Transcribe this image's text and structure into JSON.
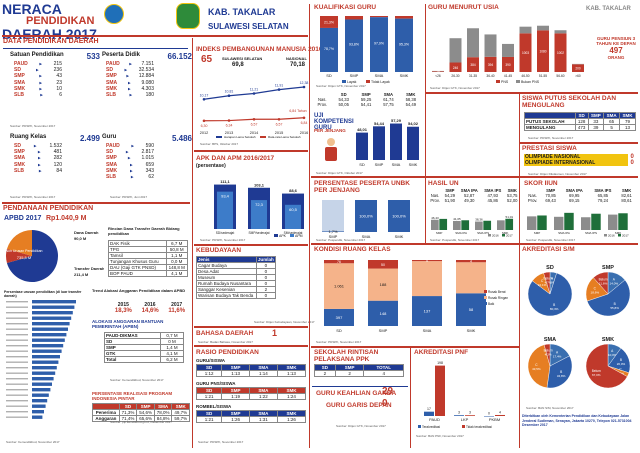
{
  "header": {
    "title_line1": "NERACA",
    "title_line2": "PENDIDIKAN",
    "title_line3": "DAERAH 2017",
    "region": "KAB. TAKALAR",
    "province": "SULAWESI SELATAN",
    "region_right": "KAB. TAKALAR"
  },
  "data_pendidikan": {
    "title": "DATA PENDIDIKAN DAERAH",
    "satuan": {
      "label": "Satuan Pendidikan",
      "total": "533",
      "items": [
        {
          "k": "PAUD",
          "v": "215"
        },
        {
          "k": "SD",
          "v": "236"
        },
        {
          "k": "SMP",
          "v": "43"
        },
        {
          "k": "SMA",
          "v": "23"
        },
        {
          "k": "SMK",
          "v": "10"
        },
        {
          "k": "SLB",
          "v": "6"
        }
      ]
    },
    "peserta": {
      "label": "Peserta Didik",
      "total": "66.152",
      "items": [
        {
          "k": "PAUD",
          "v": "7.151"
        },
        {
          "k": "SD",
          "v": "32.534"
        },
        {
          "k": "SMP",
          "v": "12.884"
        },
        {
          "k": "SMA",
          "v": "9.080"
        },
        {
          "k": "SMK",
          "v": "4.303"
        },
        {
          "k": "SLB",
          "v": "180"
        }
      ]
    },
    "ruang": {
      "label": "Ruang Kelas",
      "total": "2.499",
      "items": [
        {
          "k": "SD",
          "v": "1.532"
        },
        {
          "k": "SMP",
          "v": "481"
        },
        {
          "k": "SMA",
          "v": "282"
        },
        {
          "k": "SMK",
          "v": "120"
        },
        {
          "k": "SLB",
          "v": "84"
        }
      ]
    },
    "guru": {
      "label": "Guru",
      "total": "5.486",
      "items": [
        {
          "k": "PAUD",
          "v": "590"
        },
        {
          "k": "SD",
          "v": "2.817"
        },
        {
          "k": "SMP",
          "v": "1.015"
        },
        {
          "k": "SMA",
          "v": "659"
        },
        {
          "k": "SMK",
          "v": "343"
        },
        {
          "k": "SLB",
          "v": "62"
        }
      ]
    },
    "source1": "Sumber: PDSPK, November 2017",
    "source2": "Sumber: PDSPK, Juni 2017"
  },
  "pendanaan": {
    "title": "PENDANAAN PENDIDIKAN",
    "apbd_label": "APBD 2017",
    "apbd_value": "Rp1.040,9 M",
    "pie": [
      {
        "name": "Non Urusan Pendidikan",
        "value": "735,5 M",
        "frac": 0.707,
        "color": "#1f3a93"
      },
      {
        "name": "Dana Daerah",
        "value": "90,0 M",
        "frac": 0.087,
        "color": "#c0392b"
      },
      {
        "name": "Transfer Daerah",
        "value": "211,4 M",
        "frac": 0.206,
        "color": "#e67e22"
      }
    ],
    "rincian_title": "Rincian Dana Transfer Daerah Bidang pendidikan",
    "rincian": [
      {
        "k": "DAK Fisik",
        "v": "6,7 M"
      },
      {
        "k": "TPG",
        "v": "50,8 M"
      },
      {
        "k": "Tamsil",
        "v": "1,1 M"
      },
      {
        "k": "Tunjangan Khusus Guru",
        "v": "0,0 M"
      },
      {
        "k": "DAU (Gaji GTK PNSD)",
        "v": "148,8 M"
      },
      {
        "k": "BOP PAUD",
        "v": "4,1 M"
      }
    ],
    "persentase_title": "Persentase urusan pendidikan (di luar transfer daerah)",
    "trend_title": "Trend Alokasi Anggaran Pendidikan dalam APBD",
    "trend_years": [
      "2015",
      "2016",
      "2017"
    ],
    "trend_values": [
      "18,3%",
      "14,6%",
      "11,6%"
    ],
    "alokasi_title": "ALOKASI ANGGARAN BANTUAN PEMERINTAH (APBN)",
    "alokasi": [
      {
        "k": "PAUD-DIKMAS",
        "v": "0,7 M"
      },
      {
        "k": "SD",
        "v": "0 M"
      },
      {
        "k": "SMP",
        "v": "1,4 M"
      },
      {
        "k": "GTK",
        "v": "4,1 M"
      },
      {
        "k": "Total",
        "v": "6,2 M"
      }
    ],
    "pip_title": "PERSENTASE REALISASI PROGRAM INDONESIA PINTAR",
    "pip_headers": [
      "",
      "SD",
      "SMP",
      "SMA",
      "SMK"
    ],
    "pip_rows": [
      {
        "k": "Penerima",
        "v": [
          "71,3%",
          "54,6%",
          "78,0%",
          "49,7%"
        ]
      },
      {
        "k": "Anggaran",
        "v": [
          "71,4%",
          "65,6%",
          "84,8%",
          "59,7%"
        ]
      }
    ],
    "source": "Sumber: Kemendikbud, November 2017",
    "source_pip": "Sumber: pip.kemdikbud.go.id, Desember 2017"
  },
  "ipm": {
    "title": "INDEKS PEMBANGUNAN MANUSIA 2016",
    "rank": "65",
    "sulsel_label": "SULAWESI SELATAN",
    "sulsel_value": "69,8",
    "nasional_label": "NASIONAL",
    "nasional_value": "70,18",
    "years": [
      "2012",
      "2013",
      "2014",
      "2015",
      "2016"
    ],
    "harapan": [
      "10,17",
      "10,81",
      "11,21",
      "11,91",
      "12,38"
    ],
    "rata": [
      "6,30",
      "6,34",
      "6,57",
      "6,57",
      "6,84"
    ],
    "harapan_label": "Harapan Lama Sekolah",
    "rata_label": "Rata-rata Lama Sekolah",
    "rata_last_label": "6,84 Tahun",
    "harapan_last_label": "12,38 Tahun",
    "source": "Sumber: BPS, Oktober 2017"
  },
  "apk": {
    "title": "APK DAN APM 2016/2017",
    "subtitle": "(persentase)",
    "categories": [
      "SD/sederajat",
      "SMP/sederajat",
      "SM/sederajat"
    ],
    "apk_values": [
      111.1,
      103.1,
      88.6
    ],
    "apm_values": [
      93.4,
      72.3,
      60.5
    ],
    "apk_labels": [
      "111,1",
      "103,1",
      "88,6"
    ],
    "apm_labels": [
      "93,4",
      "72,3",
      "60,5"
    ],
    "legend_apk": "APK",
    "legend_apm": "APM",
    "source": "Sumber: PDSPK, November 2017"
  },
  "kebudayaan": {
    "title": "KEBUDAYAAN",
    "headers": [
      "Jenis",
      "Jumlah"
    ],
    "rows": [
      {
        "k": "Cagar Budaya",
        "v": "0"
      },
      {
        "k": "Desa Adat",
        "v": "0"
      },
      {
        "k": "Museum",
        "v": "0"
      },
      {
        "k": "Rumah Budaya Nusantara",
        "v": "0"
      },
      {
        "k": "Sanggar Kesenian",
        "v": "2"
      },
      {
        "k": "Warisan Budaya Tak Benda",
        "v": "0"
      }
    ],
    "source": "Sumber: Ditjen Kebudayaan, November 2017"
  },
  "bahasa": {
    "title": "BAHASA DAERAH",
    "value": "1",
    "source": "Sumber: Badan Bahasa, November 2017"
  },
  "rasio": {
    "title": "RASIO PENDIDIKAN",
    "guru_siswa_label": "GURU/SISWA",
    "headers": [
      "SD",
      "SMP",
      "SMA",
      "SMK"
    ],
    "guru_siswa": [
      "1:12",
      "1:13",
      "1:14",
      "1:13"
    ],
    "guru_pns_label": "GURU PNS/SISWA",
    "guru_pns": [
      "1:21",
      "1:19",
      "1:22",
      "1:24"
    ],
    "rombel_label": "ROMBEL/SISWA",
    "rombel": [
      "1:21",
      "1:26",
      "1:31",
      "1:26"
    ],
    "source": "Sumber: PDSPK, November 2017"
  },
  "kualifikasi": {
    "title": "KUALIFIKASI GURU",
    "categories": [
      "SD",
      "SMP",
      "SMA",
      "SMK"
    ],
    "layak": [
      78.7,
      93.8,
      97.9,
      95.3
    ],
    "tidak": [
      21.3,
      6.2,
      2.1,
      4.7
    ],
    "layak_labels": [
      "78,7%",
      "93,8%",
      "97,9%",
      "95,3%"
    ],
    "tidak_labels": [
      "21,3%",
      "6,2%",
      "2,1%",
      "4,7%"
    ],
    "legend_layak": "Layak",
    "legend_tidak": "Tidak Layak",
    "source": "Sumber: Ditjen GTK, November 2017"
  },
  "uji_kompetensi": {
    "title": "UJI KOMPETENSI GURU",
    "subtitle": "PER JENJANG",
    "header_row": [
      "",
      "SD",
      "SMP",
      "SMA",
      "SMK"
    ],
    "nas": [
      "54,33",
      "59,25",
      "61,74",
      "58,38"
    ],
    "prov": [
      "50,05",
      "54,41",
      "57,75",
      "54,49"
    ],
    "kab_values": [
      48.01,
      54.44,
      57.29,
      54.02
    ],
    "kab_labels": [
      "48,01",
      "54,44",
      "57,29",
      "54,02"
    ],
    "nas_label": "Nas.",
    "prov_label": "Prov.",
    "source": "Sumber: Ditjen GTK, Oktober 2017"
  },
  "guru_usia": {
    "title": "GURU MENURUT USIA",
    "categories": [
      "<26",
      "26-30",
      "31-35",
      "36-40",
      "41-45",
      "46-50",
      "51-55",
      "56-60",
      ">60"
    ],
    "pns": [
      18,
      246,
      384,
      394,
      390,
      1003,
      1080,
      1002,
      200
    ],
    "nonpns": [
      10,
      630,
      750,
      580,
      338,
      172,
      120,
      81,
      10
    ],
    "pns_labels": [
      "18",
      "246",
      "384",
      "394",
      "390",
      "1003",
      "1080",
      "1002",
      "200"
    ],
    "legend_pns": "PNS",
    "legend_nonpns": "Bukan PNS",
    "pensiun_text": "GURU PENSIUN 3 TAHUN KE DEPAN",
    "pensiun_value": "497",
    "pensiun_unit": "ORANG",
    "source": "Sumber: Ditjen GTK, November 2017"
  },
  "putus": {
    "title": "SISWA PUTUS SEKOLAH DAN MENGULANG",
    "headers": [
      "",
      "SD",
      "SMP",
      "SMA",
      "SMK"
    ],
    "rows": [
      {
        "k": "PUTUS SEKOLAH",
        "v": [
          "128",
          "33",
          "65",
          "79"
        ]
      },
      {
        "k": "MENGULANG",
        "v": [
          "473",
          "39",
          "5",
          "13"
        ]
      }
    ],
    "source": "Sumber: PDSPK, November 2017"
  },
  "prestasi": {
    "title": "PRESTASI SISWA",
    "rows": [
      {
        "k": "OLIMPIADE NASIONAL",
        "v": "0"
      },
      {
        "k": "OLIMPIADE INTERNASIONAL",
        "v": "0"
      }
    ],
    "source": "Sumber: Ditjen Dikdasmen, November 2017"
  },
  "unbk": {
    "title": "PERSENTASE PESERTA UNBK PER JENJANG",
    "categories": [
      "SMP",
      "SMA",
      "SMK"
    ],
    "values": [
      1.7,
      100,
      100
    ],
    "labels": [
      "1,7%",
      "100,0%",
      "100,0%"
    ],
    "source": "Sumber: Puspendik, November 2017"
  },
  "hasil_un": {
    "title": "HASIL UN",
    "header_row": [
      "",
      "SMP",
      "SMA IPA",
      "SMA IPS",
      "SMK"
    ],
    "nas": [
      "54,29",
      "52,87",
      "47,93",
      "53,75"
    ],
    "prov": [
      "51,90",
      "49,30",
      "45,86",
      "52,00"
    ],
    "categories": [
      "SMP",
      "SMA IPA",
      "SMA IPS",
      "SMK"
    ],
    "y2016": [
      46.43,
      41.05,
      38.36,
      44.0
    ],
    "y2017": [
      50.5,
      44.2,
      42.0,
      51.01
    ],
    "labels2017": [
      "",
      "",
      "",
      "51,01"
    ],
    "labels2016": [
      "46,43",
      "41,05",
      "38,36",
      ""
    ],
    "legend_2016": "2016",
    "legend_2017": "2017",
    "nas_label": "Nas.",
    "prov_label": "Prov.",
    "source": "Sumber: Puspendik, November 2017"
  },
  "skor_iiun": {
    "title": "SKOR IIUN",
    "header_row": [
      "",
      "SMP",
      "SMA IPA",
      "SMA IPS",
      "SMK"
    ],
    "nas": [
      "70,85",
      "69,95",
      "65,85",
      "82,61"
    ],
    "prov": [
      "69,43",
      "69,15",
      "79,24",
      "80,61"
    ],
    "categories": [
      "SMP",
      "SMA IPA",
      "SMA IPS",
      "SMK"
    ],
    "y2016": [
      62,
      60,
      58,
      70
    ],
    "y2017": [
      66,
      78,
      74,
      76
    ],
    "nas_label": "Nas.",
    "prov_label": "Prov.",
    "legend_2016": "2016",
    "legend_2017": "2017",
    "source": "Sumber: Puspendik, November 2017"
  },
  "kondisi": {
    "title": "KONDISI RUANG KELAS",
    "categories": [
      "SD",
      "SMP",
      "SMA",
      "SMK"
    ],
    "baik": [
      397,
      148,
      137,
      58
    ],
    "rusak_ringan": [
      1061,
      188,
      160,
      55
    ],
    "rusak_berat": [
      76,
      50,
      5,
      4
    ],
    "baik_labels": [
      "397",
      "148",
      "137",
      "58"
    ],
    "ringan_labels": [
      "1.061",
      "188",
      "",
      ""
    ],
    "berat_labels": [
      "76",
      "50",
      "5",
      "4"
    ],
    "legend_baik": "Baik",
    "legend_ringan": "Rusak Ringan",
    "legend_berat": "Rusak Berat",
    "source": "Sumber: PDSPK, November 2017"
  },
  "akreditasi": {
    "title": "AKREDITASI S/M",
    "charts": [
      {
        "name": "SD",
        "slices": [
          {
            "k": "A",
            "frac": 0.049,
            "label": "4,9%"
          },
          {
            "k": "B",
            "frac": 0.803,
            "label": "80,3%"
          },
          {
            "k": "C",
            "frac": 0.101,
            "label": "10,1%"
          },
          {
            "k": "Belum",
            "frac": 0.047,
            "label": "4,7%"
          }
        ]
      },
      {
        "name": "SMP",
        "slices": [
          {
            "k": "A",
            "frac": 0.14,
            "label": "14,0%"
          },
          {
            "k": "B",
            "frac": 0.558,
            "label": "55,8%"
          },
          {
            "k": "C",
            "frac": 0.186,
            "label": "18,6%"
          },
          {
            "k": "Belum",
            "frac": 0.116,
            "label": "11,6%"
          }
        ]
      },
      {
        "name": "SMA",
        "slices": [
          {
            "k": "A",
            "frac": 0.174,
            "label": "17,4%"
          },
          {
            "k": "B",
            "frac": 0.348,
            "label": "34,8%"
          },
          {
            "k": "C",
            "frac": 0.435,
            "label": "43,5%"
          },
          {
            "k": "Belum",
            "frac": 0.043,
            "label": "4,3%"
          }
        ]
      },
      {
        "name": "SMK",
        "slices": [
          {
            "k": "A",
            "frac": 0.1,
            "label": "10,0%"
          },
          {
            "k": "B",
            "frac": 0.2,
            "label": "20,0%"
          },
          {
            "k": "C",
            "frac": 0.03,
            "label": "3,0%"
          },
          {
            "k": "Belum",
            "frac": 0.67,
            "label": "67,0%"
          }
        ]
      }
    ],
    "colors": {
      "A": "#3a6fb0",
      "B": "#2e5eaa",
      "C": "#e67e22",
      "Belum": "#c0392b"
    },
    "source": "Sumber: BAN S/M, November 2017"
  },
  "rintisan": {
    "title": "SEKOLAH RINTISAN PELAKSANA PPK",
    "headers": [
      "SD",
      "SMP",
      "TOTAL"
    ],
    "values": [
      "2",
      "2",
      "4"
    ],
    "source": "Sumber: Ditjen GTK, November 2017"
  },
  "keahlian": {
    "title": "GURU KEAHLIAN GANDA",
    "value": "29"
  },
  "garis_depan": {
    "title": "GURU GARIS DEPAN",
    "value": "0",
    "source": "Sumber: Ditjen GTK, November 2017"
  },
  "akreditasi_pnf": {
    "title": "AKREDITASI PNF",
    "categories": [
      "PAUD",
      "LKP",
      "PKBM"
    ],
    "terakreditasi": [
      17,
      3,
      0
    ],
    "tidak": [
      198,
      3,
      4
    ],
    "labels_ter": [
      "17",
      "3",
      "0"
    ],
    "labels_tidak": [
      "198",
      "3",
      "4"
    ],
    "legend_ter": "Terakreditasi",
    "legend_tidak": "Tidak terakreditasi",
    "source": "Sumber: BAN PNF, November 2017"
  },
  "footer": {
    "text": "Diterbitkan oleh Kementerian Pendidikan dan Kebudayaan Jalan Jenderal Sudirman, Senayan, Jakarta 10270, Telepon 021-5731004 Desember 2017"
  },
  "colors": {
    "red": "#c0392b",
    "blue": "#1f3a93",
    "orange": "#e67e22",
    "gray": "#555555"
  }
}
